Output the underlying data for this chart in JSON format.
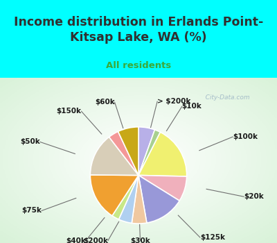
{
  "title": "Income distribution in Erlands Point-\nKitsap Lake, WA (%)",
  "subtitle": "All residents",
  "labels": [
    "> $200k",
    "$10k",
    "$100k",
    "$20k",
    "$125k",
    "$30k",
    "$200k",
    "$40k",
    "$75k",
    "$50k",
    "$150k",
    "$60k"
  ],
  "sizes": [
    5.5,
    2.0,
    18.0,
    8.5,
    13.5,
    5.0,
    4.5,
    2.5,
    16.0,
    14.5,
    3.5,
    7.0
  ],
  "colors": [
    "#b8b0e8",
    "#a8d090",
    "#f0f070",
    "#f0b0bc",
    "#9898d8",
    "#f0c8a0",
    "#b0d0f0",
    "#c8e888",
    "#f0a030",
    "#d8ceb8",
    "#f49898",
    "#c8a818"
  ],
  "background_top": "#00ffff",
  "title_color": "#303030",
  "subtitle_color": "#3aaa3a",
  "watermark": "   City-Data.com",
  "label_fontsize": 7.5,
  "title_fontsize": 12.5
}
